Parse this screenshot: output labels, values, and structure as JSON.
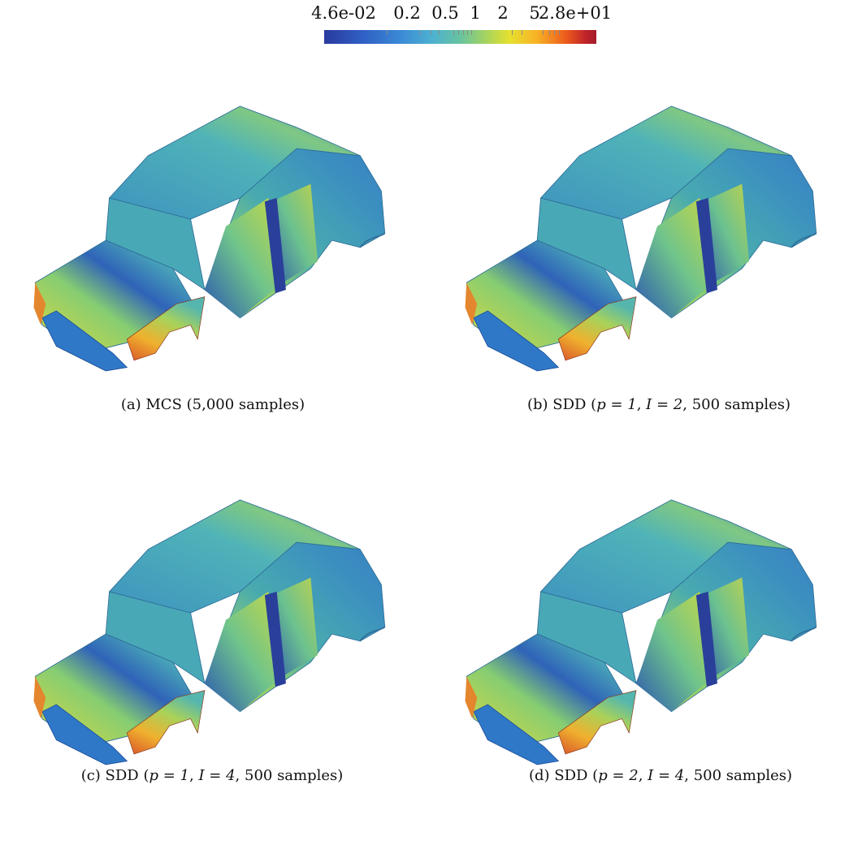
{
  "colorbar": {
    "tick_labels": [
      "4.6e-02",
      "0.2",
      "0.5",
      "1",
      "2",
      "5",
      "2.8e+01"
    ],
    "colormap": [
      "#2a3a9e",
      "#3b8ad6",
      "#67c39f",
      "#e5e12f",
      "#ec5a1c",
      "#a51a2b"
    ]
  },
  "panels": [
    {
      "id": "a",
      "prefix": "(a) MCS (5,000 samples)",
      "p": "",
      "I": "",
      "samples": ""
    },
    {
      "id": "b",
      "prefix": "(b) SDD (",
      "p": "p = 1",
      "I": "I = 2",
      "samples": "500 samples)"
    },
    {
      "id": "c",
      "prefix": "(c) SDD (",
      "p": "p = 1",
      "I": "I = 4",
      "samples": "500 samples)"
    },
    {
      "id": "d",
      "prefix": "(d) SDD (",
      "p": "p = 2",
      "I": "I = 4",
      "samples": "500 samples)"
    }
  ]
}
